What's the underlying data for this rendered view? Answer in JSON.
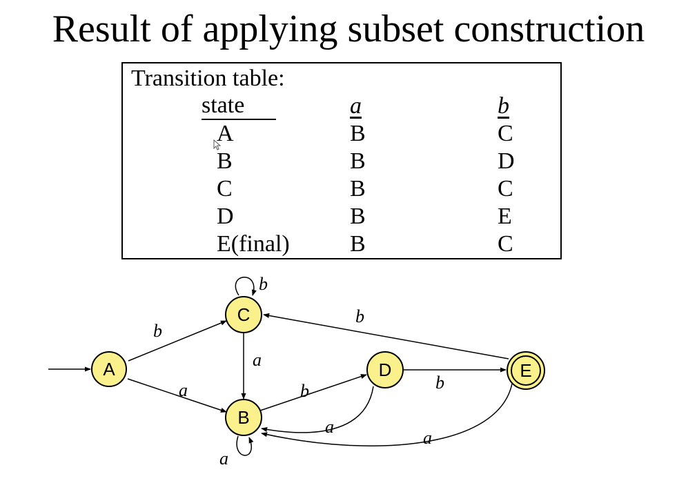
{
  "slide": {
    "title": "Result of applying subset construction"
  },
  "transition_table": {
    "caption": "Transition table:",
    "headers": {
      "state": "state",
      "a": "a",
      "b": "b"
    },
    "rows": [
      {
        "state": "A",
        "a": "B",
        "b": "C"
      },
      {
        "state": "B",
        "a": "B",
        "b": "D"
      },
      {
        "state": "C",
        "a": "B",
        "b": "C"
      },
      {
        "state": "D",
        "a": "B",
        "b": "E"
      },
      {
        "state": "E(final)",
        "a": "B",
        "b": "C"
      }
    ]
  },
  "diagram": {
    "node_fill": "#faf08c",
    "nodes": [
      {
        "id": "A",
        "label": "A",
        "accepting": false,
        "start": true
      },
      {
        "id": "B",
        "label": "B",
        "accepting": false,
        "start": false
      },
      {
        "id": "C",
        "label": "C",
        "accepting": false,
        "start": false
      },
      {
        "id": "D",
        "label": "D",
        "accepting": false,
        "start": false
      },
      {
        "id": "E",
        "label": "E",
        "accepting": true,
        "start": false
      }
    ],
    "edges": [
      {
        "from": "A",
        "to": "C",
        "label": "b"
      },
      {
        "from": "A",
        "to": "B",
        "label": "a"
      },
      {
        "from": "C",
        "to": "C",
        "label": "b"
      },
      {
        "from": "C",
        "to": "B",
        "label": "a"
      },
      {
        "from": "B",
        "to": "B",
        "label": "a"
      },
      {
        "from": "B",
        "to": "D",
        "label": "b"
      },
      {
        "from": "D",
        "to": "B",
        "label": "a"
      },
      {
        "from": "D",
        "to": "E",
        "label": "b"
      },
      {
        "from": "E",
        "to": "C",
        "label": "b"
      },
      {
        "from": "E",
        "to": "B",
        "label": "a"
      }
    ]
  }
}
